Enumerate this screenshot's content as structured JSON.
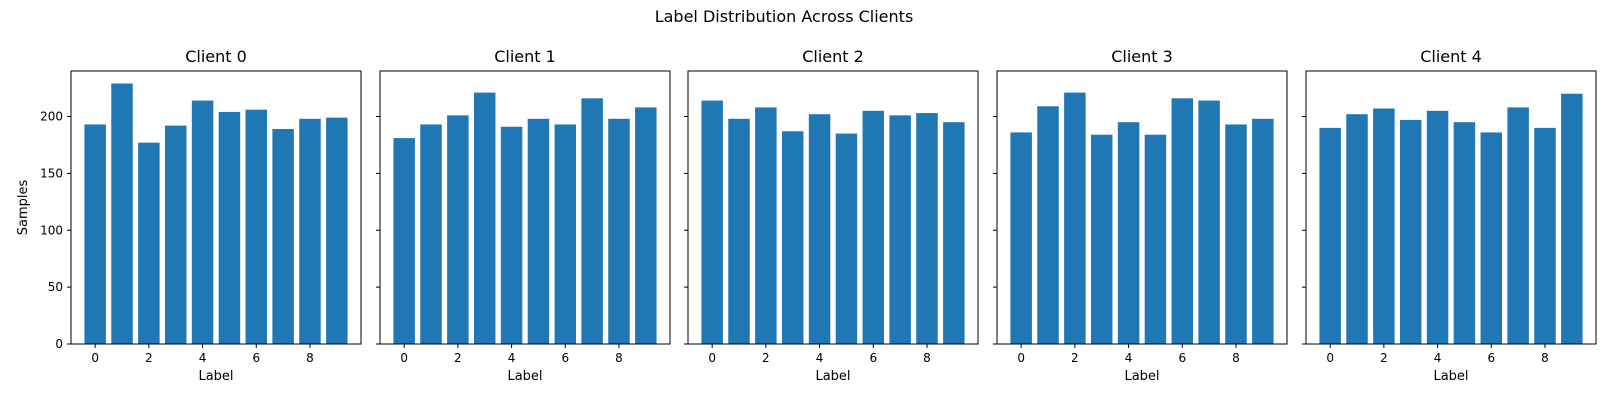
{
  "figure": {
    "suptitle": "Label Distribution Across Clients",
    "bar_color": "#1f77b4",
    "frame_color": "#000000",
    "background": "#ffffff"
  },
  "chart_data": [
    {
      "type": "bar",
      "title": "Client 0",
      "xlabel": "Label",
      "ylabel": "Samples",
      "categories": [
        0,
        1,
        2,
        3,
        4,
        5,
        6,
        7,
        8,
        9
      ],
      "values": [
        193,
        229,
        177,
        192,
        214,
        204,
        206,
        189,
        198,
        199
      ],
      "xticks": [
        0,
        2,
        4,
        6,
        8
      ],
      "yticks": [
        0,
        50,
        100,
        150,
        200
      ],
      "ylim": [
        0,
        240
      ],
      "grid": false
    },
    {
      "type": "bar",
      "title": "Client 1",
      "xlabel": "Label",
      "ylabel": "",
      "categories": [
        0,
        1,
        2,
        3,
        4,
        5,
        6,
        7,
        8,
        9
      ],
      "values": [
        181,
        193,
        201,
        221,
        191,
        198,
        193,
        216,
        198,
        208
      ],
      "xticks": [
        0,
        2,
        4,
        6,
        8
      ],
      "yticks": [
        0,
        50,
        100,
        150,
        200
      ],
      "ylim": [
        0,
        240
      ],
      "grid": false
    },
    {
      "type": "bar",
      "title": "Client 2",
      "xlabel": "Label",
      "ylabel": "",
      "categories": [
        0,
        1,
        2,
        3,
        4,
        5,
        6,
        7,
        8,
        9
      ],
      "values": [
        214,
        198,
        208,
        187,
        202,
        185,
        205,
        201,
        203,
        195
      ],
      "xticks": [
        0,
        2,
        4,
        6,
        8
      ],
      "yticks": [
        0,
        50,
        100,
        150,
        200
      ],
      "ylim": [
        0,
        240
      ],
      "grid": false
    },
    {
      "type": "bar",
      "title": "Client 3",
      "xlabel": "Label",
      "ylabel": "",
      "categories": [
        0,
        1,
        2,
        3,
        4,
        5,
        6,
        7,
        8,
        9
      ],
      "values": [
        186,
        209,
        221,
        184,
        195,
        184,
        216,
        214,
        193,
        198
      ],
      "xticks": [
        0,
        2,
        4,
        6,
        8
      ],
      "yticks": [
        0,
        50,
        100,
        150,
        200
      ],
      "ylim": [
        0,
        240
      ],
      "grid": false
    },
    {
      "type": "bar",
      "title": "Client 4",
      "xlabel": "Label",
      "ylabel": "",
      "categories": [
        0,
        1,
        2,
        3,
        4,
        5,
        6,
        7,
        8,
        9
      ],
      "values": [
        190,
        202,
        207,
        197,
        205,
        195,
        186,
        208,
        190,
        220
      ],
      "xticks": [
        0,
        2,
        4,
        6,
        8
      ],
      "yticks": [
        0,
        50,
        100,
        150,
        200
      ],
      "ylim": [
        0,
        240
      ],
      "grid": false
    }
  ]
}
